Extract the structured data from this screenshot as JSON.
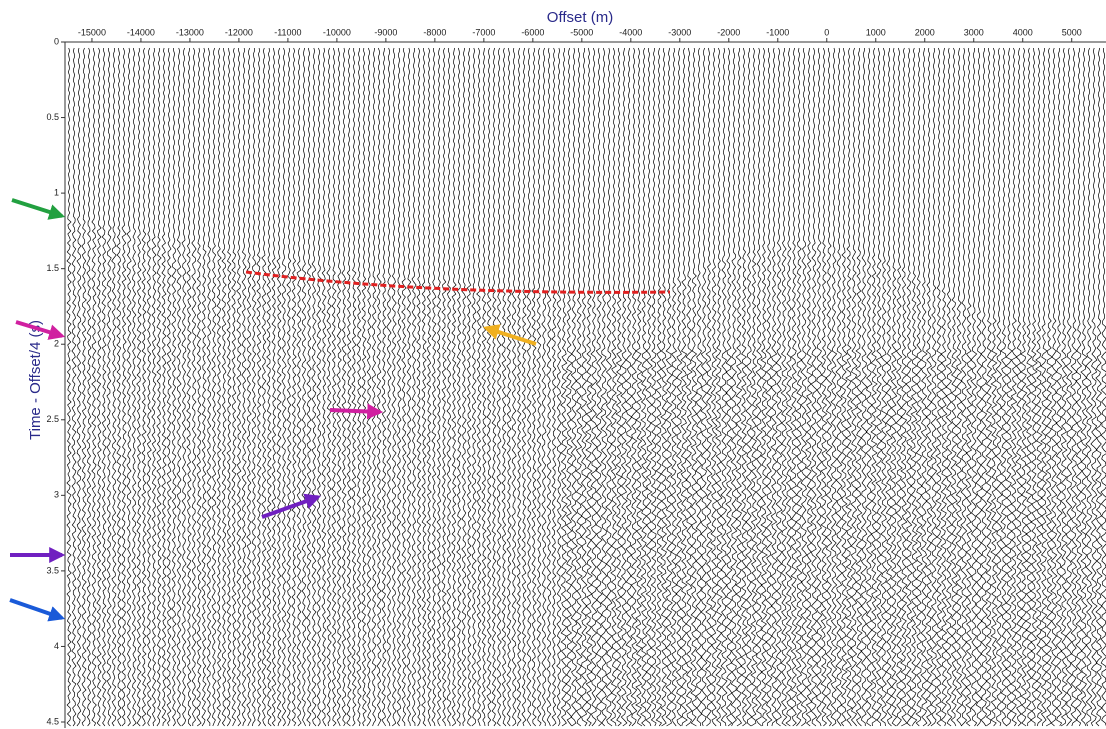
{
  "chart_data": {
    "type": "seismic-wiggle",
    "xlabel": "Offset (m)",
    "ylabel": "Time - Offset/4 (s)",
    "xlim": [
      -15550,
      5700
    ],
    "xticks": [
      -15000,
      -14000,
      -13000,
      -12000,
      -11000,
      -10000,
      -9000,
      -8000,
      -7000,
      -6000,
      -5000,
      -4000,
      -3000,
      -2000,
      -1000,
      0,
      1000,
      2000,
      3000,
      4000,
      5000
    ],
    "ylim": [
      0,
      4.5
    ],
    "yticks": [
      0,
      0.5,
      1,
      1.5,
      2,
      2.5,
      3,
      3.5,
      4,
      4.5
    ]
  }
}
